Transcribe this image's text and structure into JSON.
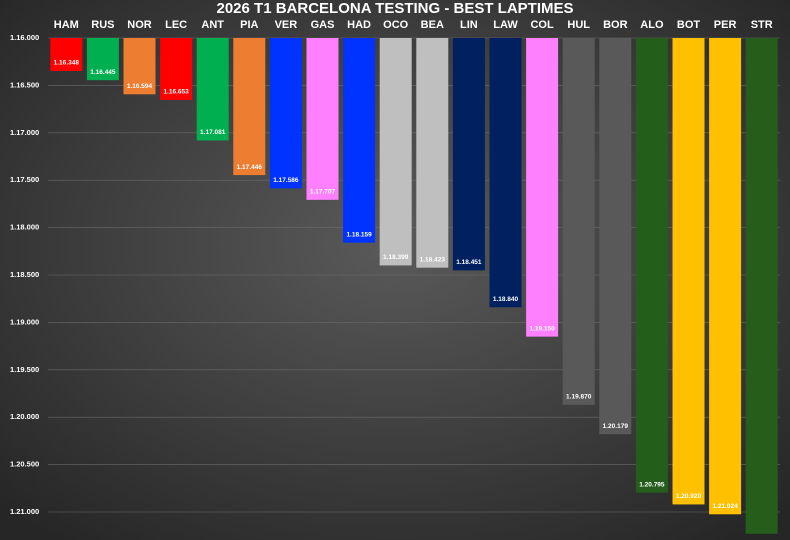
{
  "chart_data": {
    "type": "bar",
    "title": "2026 T1 BARCELONA TESTING - BEST LAPTIMES",
    "categories": [
      "HAM",
      "RUS",
      "NOR",
      "LEC",
      "ANT",
      "PIA",
      "VER",
      "GAS",
      "HAD",
      "OCO",
      "BEA",
      "LIN",
      "LAW",
      "COL",
      "HUL",
      "BOR",
      "ALO",
      "BOT",
      "PER",
      "STR"
    ],
    "values": [
      76.348,
      76.445,
      76.594,
      76.653,
      77.081,
      77.446,
      77.586,
      77.707,
      78.159,
      78.399,
      78.423,
      78.451,
      78.84,
      79.15,
      79.87,
      80.179,
      80.795,
      80.92,
      81.024,
      81.23
    ],
    "value_labels": [
      "1.16.348",
      "1.16.445",
      "1.16.594",
      "1.16.653",
      "1.17.081",
      "1.17.446",
      "1.17.586",
      "1.17.707",
      "1.18.159",
      "1.18.399",
      "1.18.423",
      "1.18.451",
      "1.18.840",
      "1.19.150",
      "1.19.870",
      "1.20.179",
      "1.20.795",
      "1.20.920",
      "1.21.024",
      null
    ],
    "colors": [
      "#ff0000",
      "#00b050",
      "#ed7d31",
      "#ff0000",
      "#00b050",
      "#ed7d31",
      "#0033ff",
      "#ff80ff",
      "#0033ff",
      "#bfbfbf",
      "#bfbfbf",
      "#002060",
      "#002060",
      "#ff80ff",
      "#595959",
      "#595959",
      "#255e1b",
      "#ffc000",
      "#ffc000",
      "#255e1b"
    ],
    "ylim": [
      76,
      81.25
    ],
    "inverted": true,
    "yticks": [
      {
        "value": 76,
        "label": "1.16.000"
      },
      {
        "value": 76.5,
        "label": "1.16.500"
      },
      {
        "value": 77,
        "label": "1.17.000"
      },
      {
        "value": 77.5,
        "label": "1.17.500"
      },
      {
        "value": 78,
        "label": "1.18.000"
      },
      {
        "value": 78.5,
        "label": "1.18.500"
      },
      {
        "value": 79,
        "label": "1.19.000"
      },
      {
        "value": 79.5,
        "label": "1.19.500"
      },
      {
        "value": 80,
        "label": "1.20.000"
      },
      {
        "value": 80.5,
        "label": "1.20.500"
      },
      {
        "value": 81,
        "label": "1.21.000"
      }
    ],
    "grid": true
  }
}
